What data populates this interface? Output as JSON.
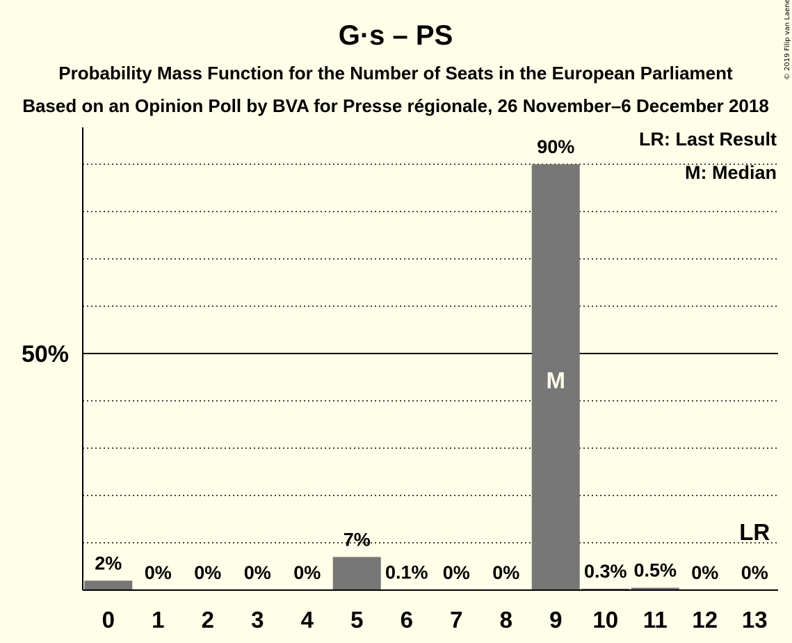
{
  "chart_data": {
    "type": "bar",
    "title": "G·s – PS",
    "subtitle": "Probability Mass Function for the Number of Seats in the European Parliament",
    "subtitle2": "Based on an Opinion Poll by BVA for Presse régionale, 26 November–6 December 2018",
    "copyright": "© 2019 Filip van Laenen",
    "categories": [
      "0",
      "1",
      "2",
      "3",
      "4",
      "5",
      "6",
      "7",
      "8",
      "9",
      "10",
      "11",
      "12",
      "13"
    ],
    "values": [
      2,
      0,
      0,
      0,
      0,
      7,
      0.1,
      0,
      0,
      90,
      0.3,
      0.5,
      0,
      0
    ],
    "value_labels": [
      "2%",
      "0%",
      "0%",
      "0%",
      "0%",
      "7%",
      "0.1%",
      "0%",
      "0%",
      "90%",
      "0.3%",
      "0.5%",
      "0%",
      "0%"
    ],
    "ylim": [
      0,
      100
    ],
    "y_tick_label": "50%",
    "y_tick_value": 50,
    "gridlines": [
      10,
      20,
      30,
      40,
      60,
      70,
      80,
      90
    ],
    "median_index": 9,
    "median_marker": "M",
    "last_result_index": 13,
    "last_result_marker": "LR",
    "legend": {
      "position": "top-right",
      "items": [
        "LR: Last Result",
        "M: Median"
      ]
    },
    "bar_color": "#777777",
    "background": "#FFFEE8"
  }
}
